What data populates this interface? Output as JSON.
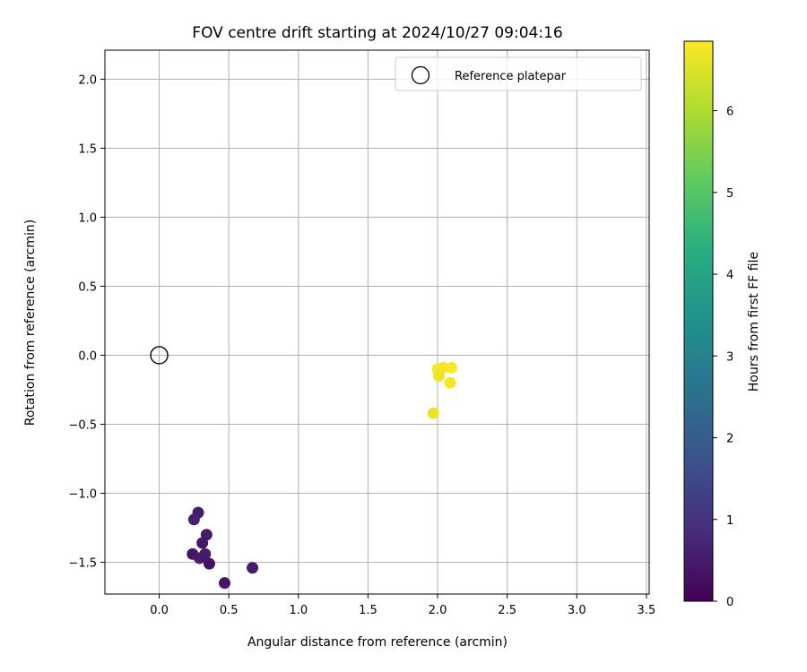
{
  "chart_data": {
    "type": "scatter",
    "title": "FOV centre drift starting at 2024/10/27 09:04:16",
    "xlabel": "Angular distance from reference (arcmin)",
    "ylabel": "Rotation from reference (arcmin)",
    "xlim": [
      -0.39,
      3.52
    ],
    "ylim": [
      -1.73,
      2.21
    ],
    "x_ticks": [
      0.0,
      0.5,
      1.0,
      1.5,
      2.0,
      2.5,
      3.0,
      3.5
    ],
    "x_tick_labels": [
      "0.0",
      "0.5",
      "1.0",
      "1.5",
      "2.0",
      "2.5",
      "3.0",
      "3.5"
    ],
    "y_ticks": [
      -1.5,
      -1.0,
      -0.5,
      0.0,
      0.5,
      1.0,
      1.5,
      2.0
    ],
    "y_tick_labels": [
      "−1.5",
      "−1.0",
      "−0.5",
      "0.0",
      "0.5",
      "1.0",
      "1.5",
      "2.0"
    ],
    "grid": true,
    "legend": {
      "position": "top-right",
      "entries": [
        "Reference platepar"
      ]
    },
    "reference_point": {
      "x": 0.0,
      "y": 0.0,
      "label": "Reference platepar"
    },
    "colorbar": {
      "label": "Hours from first FF file",
      "colormap": "viridis",
      "range": [
        0,
        6.85
      ],
      "ticks": [
        0,
        1,
        2,
        3,
        4,
        5,
        6
      ],
      "tick_labels": [
        "0",
        "1",
        "2",
        "3",
        "4",
        "5",
        "6"
      ]
    },
    "points": [
      {
        "x": 0.28,
        "y": -1.14,
        "hours": 0.55
      },
      {
        "x": 0.25,
        "y": -1.19,
        "hours": 0.6
      },
      {
        "x": 0.34,
        "y": -1.3,
        "hours": 0.5
      },
      {
        "x": 0.31,
        "y": -1.36,
        "hours": 0.45
      },
      {
        "x": 0.24,
        "y": -1.44,
        "hours": 0.4
      },
      {
        "x": 0.33,
        "y": -1.44,
        "hours": 0.55
      },
      {
        "x": 0.29,
        "y": -1.47,
        "hours": 0.5
      },
      {
        "x": 0.36,
        "y": -1.51,
        "hours": 0.35
      },
      {
        "x": 0.67,
        "y": -1.54,
        "hours": 0.5
      },
      {
        "x": 0.47,
        "y": -1.65,
        "hours": 0.4
      },
      {
        "x": 2.0,
        "y": -0.1,
        "hours": 6.8
      },
      {
        "x": 2.04,
        "y": -0.09,
        "hours": 6.75
      },
      {
        "x": 2.1,
        "y": -0.09,
        "hours": 6.82
      },
      {
        "x": 2.01,
        "y": -0.15,
        "hours": 6.7
      },
      {
        "x": 2.09,
        "y": -0.2,
        "hours": 6.78
      },
      {
        "x": 1.97,
        "y": -0.42,
        "hours": 6.65
      }
    ]
  }
}
